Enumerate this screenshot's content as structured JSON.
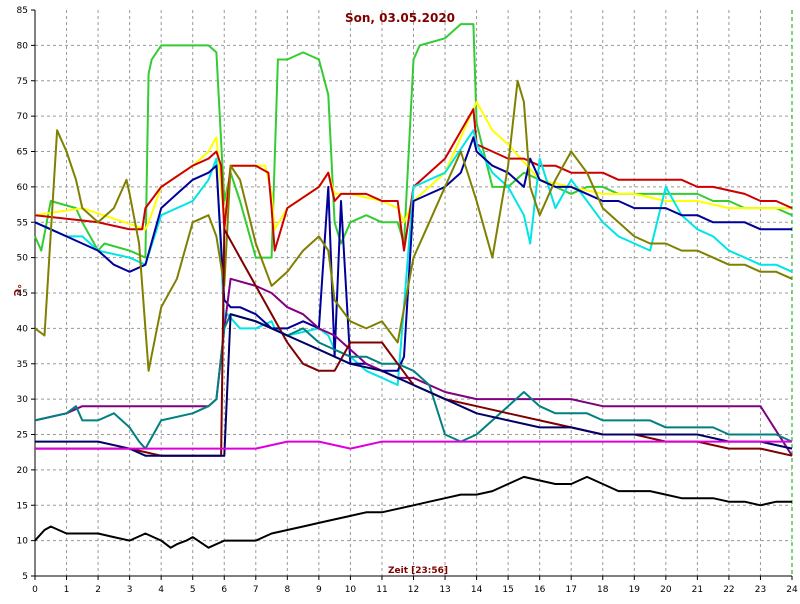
{
  "chart_data": {
    "type": "line",
    "title": "Son, 03.05.2020",
    "xlabel": "Zeit [23:56]",
    "ylabel": "°C",
    "xlim": [
      0,
      24
    ],
    "ylim": [
      5,
      85
    ],
    "x_ticks": [
      "0",
      "1",
      "2",
      "3",
      "4",
      "5",
      "6",
      "7",
      "8",
      "9",
      "10",
      "11",
      "12",
      "13",
      "14",
      "15",
      "16",
      "17",
      "18",
      "19",
      "20",
      "21",
      "22",
      "23",
      "24"
    ],
    "y_ticks": [
      "5",
      "10",
      "15",
      "20",
      "25",
      "30",
      "35",
      "40",
      "45",
      "50",
      "55",
      "60",
      "65",
      "70",
      "75",
      "80",
      "85"
    ],
    "grid": true,
    "background": "#ffffff",
    "grid_color": "#9a9a9a",
    "series": [
      {
        "color": "#33cc33",
        "x": [
          0,
          0.2,
          0.5,
          1.3,
          1.5,
          2,
          2.2,
          3,
          3.5,
          3.6,
          3.7,
          4,
          4.5,
          5,
          5.5,
          5.75,
          6,
          6.2,
          6.5,
          7,
          7.5,
          7.7,
          8,
          8.5,
          9,
          9.3,
          9.5,
          9.7,
          10,
          10.5,
          11,
          11.5,
          11.7,
          12,
          12.2,
          13,
          13.5,
          13.9,
          14,
          14.5,
          15,
          15.5,
          16,
          16.5,
          17,
          17.5,
          18,
          18.5,
          19,
          19.5,
          20,
          20.5,
          21,
          21.5,
          22,
          22.5,
          23,
          23.5,
          24
        ],
        "y": [
          53,
          51,
          58,
          57,
          55,
          51,
          52,
          51,
          50,
          76,
          78,
          80,
          80,
          80,
          80,
          79,
          58,
          62,
          58,
          50,
          50,
          78,
          78,
          79,
          78,
          73,
          55,
          52,
          55,
          56,
          55,
          55,
          52,
          78,
          80,
          81,
          83,
          83,
          69,
          60,
          60,
          62,
          61,
          60,
          59,
          60,
          60,
          59,
          59,
          59,
          59,
          59,
          59,
          58,
          58,
          57,
          57,
          57,
          56
        ]
      },
      {
        "color": "#ffff00",
        "x": [
          0,
          1.5,
          3.5,
          3.6,
          4,
          5,
          5.5,
          5.75,
          6,
          6.2,
          7,
          7.3,
          7.5,
          7.6,
          8,
          9,
          9.3,
          9.5,
          10,
          11,
          11.5,
          11.7,
          12,
          13,
          14,
          14.5,
          15,
          16,
          17,
          18,
          19,
          20,
          21,
          22,
          23,
          24
        ],
        "y": [
          56,
          57,
          54,
          55,
          60,
          63,
          65,
          67,
          55,
          63,
          63,
          63,
          59,
          54,
          57,
          60,
          62,
          59,
          59,
          58,
          57,
          55,
          58,
          62,
          72,
          68,
          66,
          61,
          60,
          59,
          59,
          58,
          58,
          57,
          57,
          57
        ]
      },
      {
        "color": "#cc0000",
        "x": [
          0,
          1,
          2,
          3,
          3.4,
          3.5,
          4,
          5,
          5.5,
          5.75,
          5.9,
          6,
          6.2,
          7,
          7.4,
          7.5,
          7.6,
          8,
          9,
          9.3,
          9.5,
          9.7,
          10,
          10.5,
          11,
          11.5,
          11.7,
          12,
          13,
          13.9,
          14,
          14.5,
          15,
          15.5,
          16,
          16.5,
          17,
          17.5,
          18,
          18.5,
          19,
          19.5,
          20,
          20.5,
          21,
          21.5,
          22,
          22.5,
          23,
          23.5,
          24
        ],
        "y": [
          56,
          55.5,
          55,
          54,
          54,
          57,
          60,
          63,
          64,
          65,
          63,
          54,
          63,
          63,
          62,
          57,
          51,
          57,
          60,
          62,
          58,
          59,
          59,
          59,
          58,
          58,
          51,
          60,
          64,
          71,
          66,
          65,
          64,
          64,
          63,
          63,
          62,
          62,
          62,
          61,
          61,
          61,
          61,
          61,
          60,
          60,
          59.5,
          59,
          58,
          58,
          57
        ]
      },
      {
        "color": "#00e5e5",
        "x": [
          0,
          1,
          1.5,
          2,
          3,
          3.5,
          4,
          5,
          5.5,
          5.75,
          6,
          6.1,
          6.5,
          7,
          7.5,
          7.6,
          8,
          9,
          9.3,
          9.5,
          10,
          10.5,
          11,
          11.5,
          12,
          13,
          13.9,
          14,
          14.5,
          15,
          15.5,
          15.7,
          16,
          16.5,
          17,
          17.5,
          18,
          18.5,
          19,
          19.5,
          20,
          20.5,
          21,
          21.5,
          22,
          22.5,
          23,
          23.5,
          24
        ],
        "y": [
          55,
          53,
          53,
          51,
          50,
          49,
          56,
          58,
          61,
          64,
          41,
          42,
          40,
          40,
          41,
          40,
          39,
          40,
          39,
          37,
          36,
          34,
          33,
          32,
          60,
          62,
          68,
          66,
          62,
          60,
          56,
          52,
          64,
          57,
          61,
          58,
          55,
          53,
          52,
          51,
          60,
          56,
          54,
          53,
          51,
          50,
          49,
          49,
          48
        ]
      },
      {
        "color": "#000099",
        "x": [
          0,
          0.5,
          1,
          1.5,
          2,
          2.5,
          3,
          3.5,
          4,
          4.5,
          5,
          5.5,
          5.75,
          6,
          6.2,
          6.5,
          7,
          7.5,
          8,
          8.5,
          9,
          9.3,
          9.5,
          9.7,
          10,
          10.5,
          11,
          11.5,
          11.7,
          12,
          12.5,
          13,
          13.5,
          13.9,
          14,
          14.5,
          15,
          15.5,
          15.7,
          16,
          16.5,
          17,
          17.5,
          18,
          18.5,
          19,
          19.5,
          20,
          20.5,
          21,
          21.5,
          22,
          22.5,
          23,
          23.5,
          24
        ],
        "y": [
          55,
          54,
          53,
          52,
          51,
          49,
          48,
          49,
          57,
          59,
          61,
          62,
          63,
          44,
          43,
          43,
          42,
          40,
          40,
          41,
          40,
          60,
          36,
          58,
          35,
          35,
          34,
          34,
          36,
          58,
          59,
          60,
          62,
          67,
          65,
          63,
          62,
          60,
          64,
          61,
          60,
          60,
          59,
          58,
          58,
          57,
          57,
          57,
          56,
          56,
          55,
          55,
          55,
          54,
          54,
          54
        ]
      },
      {
        "color": "#808000",
        "x": [
          0,
          0.3,
          0.7,
          1,
          1.3,
          1.5,
          2,
          2.5,
          2.9,
          3,
          3.3,
          3.5,
          3.6,
          4,
          4.5,
          5,
          5.5,
          5.75,
          6,
          6.2,
          6.5,
          7,
          7.5,
          8,
          8.5,
          9,
          9.3,
          9.5,
          10,
          10.5,
          11,
          11.5,
          12,
          12.5,
          13,
          13.5,
          14,
          14.5,
          15,
          15.3,
          15.5,
          15.7,
          16,
          16.5,
          17,
          17.5,
          18,
          18.5,
          19,
          19.5,
          20,
          20.5,
          21,
          21.5,
          22,
          22.5,
          23,
          23.5,
          24
        ],
        "y": [
          40,
          39,
          68,
          65,
          61,
          57,
          55,
          57,
          61,
          59,
          52,
          40,
          34,
          43,
          47,
          55,
          56,
          53,
          46,
          63,
          61,
          52,
          46,
          48,
          51,
          53,
          51,
          44,
          41,
          40,
          41,
          38,
          50,
          55,
          60,
          65,
          58,
          50,
          63,
          75,
          72,
          60,
          56,
          61,
          65,
          62,
          57,
          55,
          53,
          52,
          52,
          51,
          51,
          50,
          49,
          49,
          48,
          48,
          47
        ]
      },
      {
        "color": "#800080",
        "x": [
          0,
          1,
          1.5,
          2,
          3,
          3.5,
          4,
          5,
          5.5,
          5.75,
          6,
          6.2,
          7,
          7.5,
          8,
          8.5,
          9,
          9.5,
          10,
          10.5,
          11,
          11.5,
          12,
          13,
          14,
          15,
          16,
          17,
          18,
          19,
          20,
          21,
          22,
          23,
          24
        ],
        "y": [
          27,
          28,
          29,
          29,
          29,
          29,
          29,
          29,
          29,
          30,
          40,
          47,
          46,
          45,
          43,
          42,
          40,
          39,
          37,
          35,
          34,
          33,
          33,
          31,
          30,
          30,
          30,
          30,
          29,
          29,
          29,
          29,
          29,
          29,
          22
        ]
      },
      {
        "color": "#008080",
        "x": [
          0,
          1,
          1.3,
          1.5,
          2,
          2.5,
          3,
          3.3,
          3.5,
          4,
          5,
          5.5,
          5.75,
          6,
          6.2,
          7,
          7.5,
          8,
          8.5,
          9,
          9.5,
          10,
          10.5,
          11,
          11.5,
          12,
          12.5,
          13,
          13.5,
          14,
          14.5,
          15,
          15.5,
          16,
          16.5,
          17,
          17.5,
          18,
          18.5,
          19,
          19.5,
          20,
          20.5,
          21,
          21.5,
          22,
          22.5,
          23,
          23.5,
          24
        ],
        "y": [
          27,
          28,
          29,
          27,
          27,
          28,
          26,
          24,
          23,
          27,
          28,
          29,
          30,
          40,
          42,
          41,
          40,
          39,
          40,
          38,
          37,
          36,
          36,
          35,
          35,
          34,
          32,
          25,
          24,
          25,
          27,
          29,
          31,
          29,
          28,
          28,
          28,
          27,
          27,
          27,
          27,
          26,
          26,
          26,
          26,
          25,
          25,
          25,
          25,
          24
        ]
      },
      {
        "color": "#800000",
        "x": [
          0,
          1,
          2,
          3,
          4,
          5,
          5.75,
          5.9,
          6,
          6.5,
          7,
          7.5,
          8,
          8.5,
          9,
          9.5,
          10,
          10.5,
          11,
          11.5,
          12,
          13,
          14,
          15,
          16,
          17,
          18,
          19,
          20,
          21,
          22,
          23,
          24
        ],
        "y": [
          23,
          23,
          23,
          23,
          22,
          22,
          22,
          22,
          54,
          50,
          46,
          42,
          38,
          35,
          34,
          34,
          38,
          38,
          38,
          35,
          32,
          30,
          29,
          28,
          27,
          26,
          25,
          25,
          24,
          24,
          23,
          23,
          22
        ]
      },
      {
        "color": "#000066",
        "x": [
          0,
          1,
          2,
          3,
          3.5,
          4,
          5,
          5.75,
          6,
          6.2,
          7,
          8,
          9,
          10,
          11,
          12,
          13,
          14,
          15,
          16,
          17,
          18,
          19,
          20,
          21,
          22,
          23,
          24
        ],
        "y": [
          24,
          24,
          24,
          23,
          22,
          22,
          22,
          22,
          22,
          42,
          41,
          39,
          37,
          35,
          34,
          32,
          30,
          28,
          27,
          26,
          26,
          25,
          25,
          25,
          25,
          24,
          24,
          23
        ]
      },
      {
        "color": "#dd00dd",
        "x": [
          0,
          1,
          2,
          3,
          4,
          5,
          6,
          7,
          8,
          9,
          10,
          11,
          12,
          13,
          14,
          15,
          16,
          17,
          18,
          19,
          20,
          21,
          22,
          23,
          24
        ],
        "y": [
          23,
          23,
          23,
          23,
          23,
          23,
          23,
          23,
          24,
          24,
          23,
          24,
          24,
          24,
          24,
          24,
          24,
          24,
          24,
          24,
          24,
          24,
          24,
          24,
          24
        ]
      },
      {
        "color": "#000000",
        "x": [
          0,
          0.3,
          0.5,
          1,
          1.5,
          2,
          2.5,
          3,
          3.5,
          4,
          4.3,
          4.5,
          4.8,
          5,
          5.5,
          6,
          6.5,
          7,
          7.5,
          8,
          8.5,
          9,
          9.5,
          10,
          10.5,
          11,
          11.5,
          12,
          12.5,
          13,
          13.5,
          14,
          14.5,
          15,
          15.5,
          16,
          16.5,
          17,
          17.5,
          18,
          18.5,
          19,
          19.5,
          20,
          20.5,
          21,
          21.5,
          22,
          22.5,
          23,
          23.5,
          24
        ],
        "y": [
          10,
          11.5,
          12,
          11,
          11,
          11,
          10.5,
          10,
          11,
          10,
          9,
          9.5,
          10,
          10.5,
          9,
          10,
          10,
          10,
          11,
          11.5,
          12,
          12.5,
          13,
          13.5,
          14,
          14,
          14.5,
          15,
          15.5,
          16,
          16.5,
          16.5,
          17,
          18,
          19,
          18.5,
          18,
          18,
          19,
          18,
          17,
          17,
          17,
          16.5,
          16,
          16,
          16,
          15.5,
          15.5,
          15,
          15.5,
          15.5
        ]
      }
    ]
  }
}
